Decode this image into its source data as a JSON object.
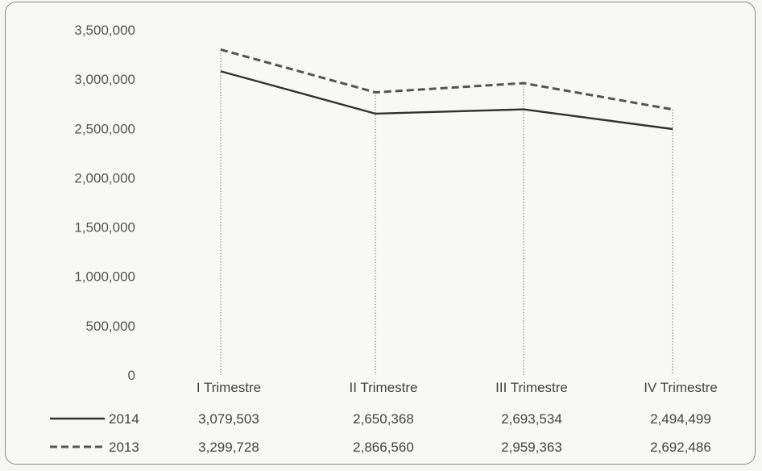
{
  "chart_data": {
    "type": "line",
    "categories": [
      "I Trimestre",
      "II Trimestre",
      "III Trimestre",
      "IV Trimestre"
    ],
    "ylim": [
      0,
      3500000
    ],
    "yticks": [
      "0",
      "500,000",
      "1,000,000",
      "1,500,000",
      "2,000,000",
      "2,500,000",
      "3,000,000",
      "3,500,000"
    ],
    "grid": false,
    "series": [
      {
        "name": "2014",
        "style": "solid",
        "color": "#333333",
        "values": [
          3079503,
          2650368,
          2693534,
          2494499
        ],
        "labels": [
          "3,079,503",
          "2,650,368",
          "2,693,534",
          "2,494,499"
        ]
      },
      {
        "name": "2013",
        "style": "dashed",
        "color": "#555555",
        "values": [
          3299728,
          2866560,
          2959363,
          2692486
        ],
        "labels": [
          "3,299,728",
          "2,866,560",
          "2,959,363",
          "2,692,486"
        ]
      }
    ],
    "legend_placement": "bottom data table"
  }
}
